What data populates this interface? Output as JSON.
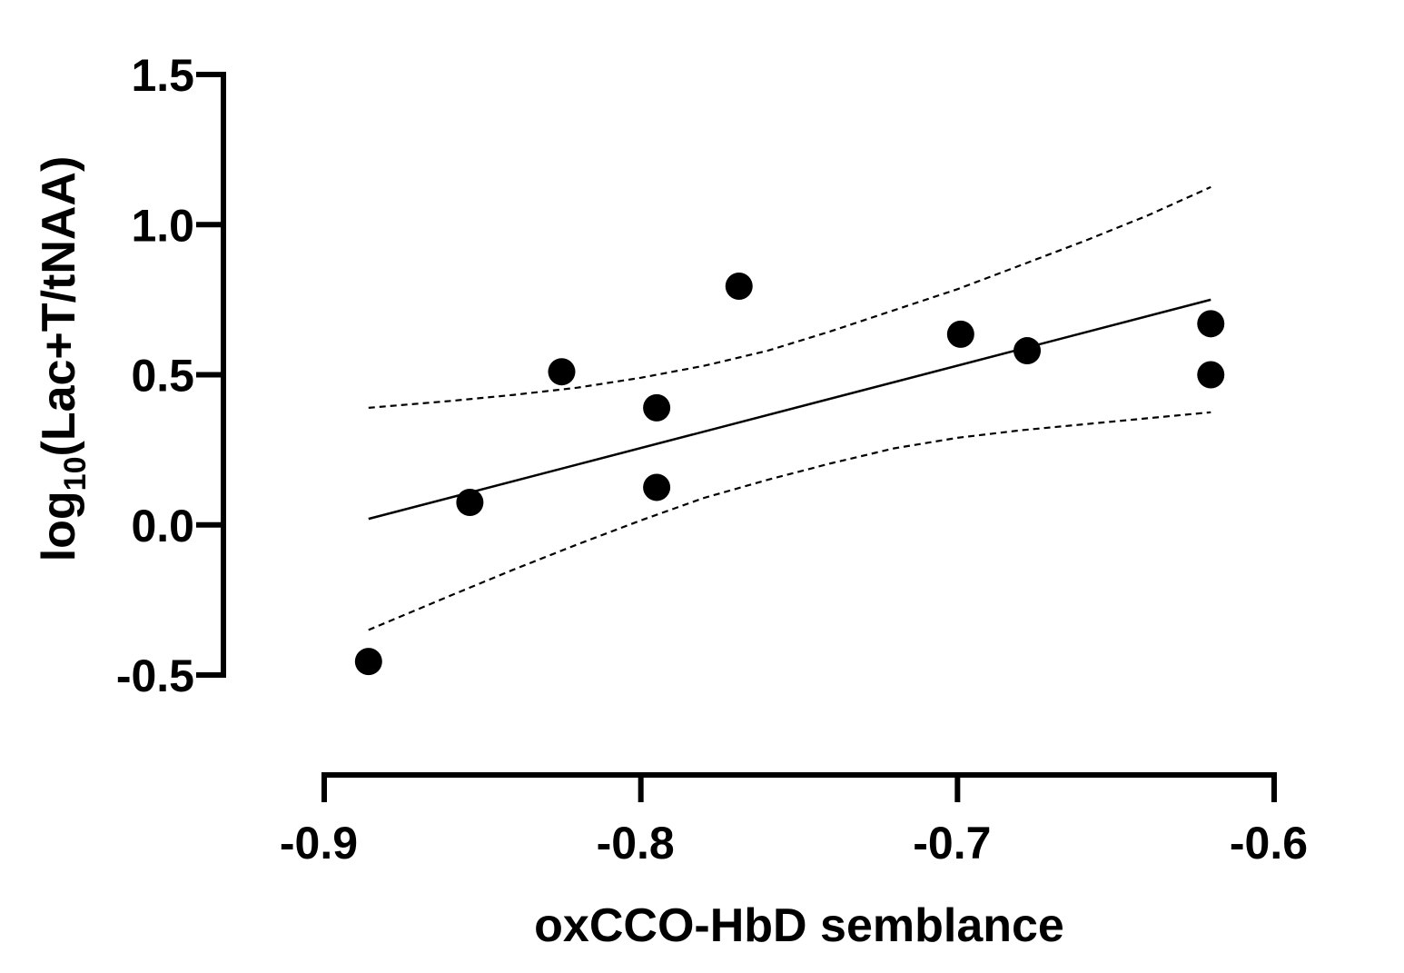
{
  "chart_data": {
    "type": "scatter",
    "xlabel": "oxCCO-HbD semblance",
    "ylabel": {
      "prefix": "log",
      "subscript": "10",
      "suffix": "(Lac+T/tNAA)"
    },
    "xlim": [
      -0.9,
      -0.6
    ],
    "ylim": [
      -0.5,
      1.5
    ],
    "x_ticks": [
      -0.9,
      -0.8,
      -0.7,
      -0.6
    ],
    "x_tick_labels": [
      "-0.9",
      "-0.8",
      "-0.7",
      "-0.6"
    ],
    "y_ticks": [
      -0.5,
      0.0,
      0.5,
      1.0,
      1.5
    ],
    "y_tick_labels": [
      "-0.5",
      "0.0",
      "0.5",
      "1.0",
      "1.5"
    ],
    "grid": false,
    "points": [
      {
        "x": -0.886,
        "y": -0.455
      },
      {
        "x": -0.854,
        "y": 0.075
      },
      {
        "x": -0.825,
        "y": 0.51
      },
      {
        "x": -0.795,
        "y": 0.39
      },
      {
        "x": -0.795,
        "y": 0.125
      },
      {
        "x": -0.769,
        "y": 0.795
      },
      {
        "x": -0.699,
        "y": 0.635
      },
      {
        "x": -0.678,
        "y": 0.58
      },
      {
        "x": -0.62,
        "y": 0.67
      },
      {
        "x": -0.62,
        "y": 0.5
      }
    ],
    "fit_line": {
      "x": [
        -0.886,
        -0.62
      ],
      "y": [
        0.02,
        0.75
      ]
    },
    "ci_upper": {
      "x": [
        -0.886,
        -0.86,
        -0.84,
        -0.82,
        -0.8,
        -0.78,
        -0.76,
        -0.74,
        -0.72,
        -0.7,
        -0.68,
        -0.66,
        -0.64,
        -0.62
      ],
      "y": [
        0.39,
        0.413,
        0.433,
        0.457,
        0.49,
        0.53,
        0.58,
        0.645,
        0.715,
        0.785,
        0.865,
        0.945,
        1.03,
        1.125
      ]
    },
    "ci_lower": {
      "x": [
        -0.886,
        -0.86,
        -0.84,
        -0.82,
        -0.8,
        -0.78,
        -0.76,
        -0.74,
        -0.72,
        -0.7,
        -0.68,
        -0.66,
        -0.64,
        -0.62
      ],
      "y": [
        -0.35,
        -0.235,
        -0.148,
        -0.065,
        0.015,
        0.09,
        0.15,
        0.205,
        0.255,
        0.29,
        0.315,
        0.335,
        0.355,
        0.375
      ]
    }
  }
}
